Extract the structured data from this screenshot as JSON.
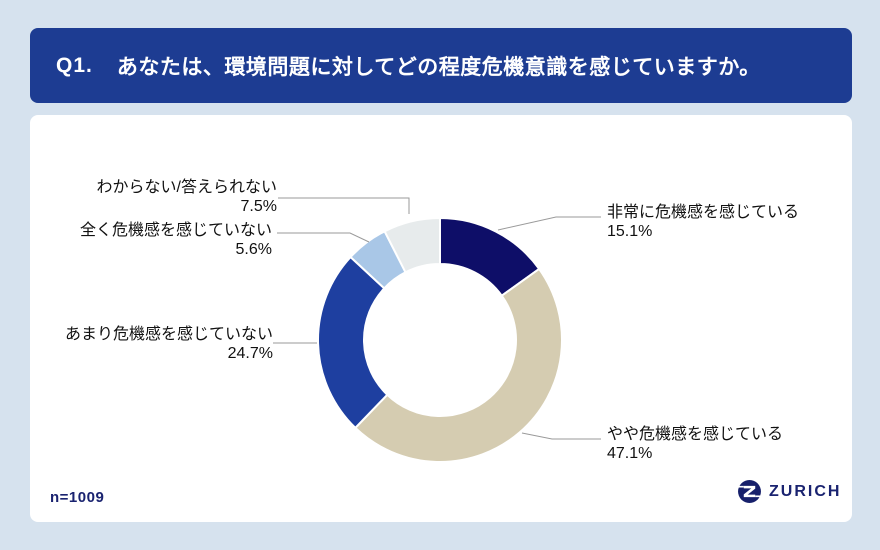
{
  "header": {
    "question_number": "Q1.",
    "question_text": "あなたは、環境問題に対してどの程度危機意識を感じていますか。"
  },
  "footer": {
    "sample_size": "n=1009",
    "brand_wordmark": "ZURICH"
  },
  "chart_data": {
    "type": "pie",
    "subtype": "donut",
    "title": "",
    "unit": "%",
    "start_angle_deg": 0,
    "direction": "clockwise",
    "legend_position": "callout-labels",
    "segments": [
      {
        "label": "非常に危機感を感じている",
        "value": 15.1,
        "value_label": "15.1%",
        "color": "#0e0e68"
      },
      {
        "label": "やや危機感を感じている",
        "value": 47.1,
        "value_label": "47.1%",
        "color": "#d5ccb1"
      },
      {
        "label": "あまり危機感を感じていない",
        "value": 24.7,
        "value_label": "24.7%",
        "color": "#1e3fa0"
      },
      {
        "label": "全く危機感を感じていない",
        "value": 5.6,
        "value_label": "5.6%",
        "color": "#a9c7e7"
      },
      {
        "label": "わからない/答えられない",
        "value": 7.5,
        "value_label": "7.5%",
        "color": "#e7ebec"
      }
    ]
  },
  "colors": {
    "page_background": "#d6e2ee",
    "header_background": "#1d3c92",
    "header_text": "#ffffff",
    "card_background": "#ffffff",
    "label_text": "#111111",
    "leader_line": "#9a9a9a",
    "brand_navy": "#1a2370"
  }
}
